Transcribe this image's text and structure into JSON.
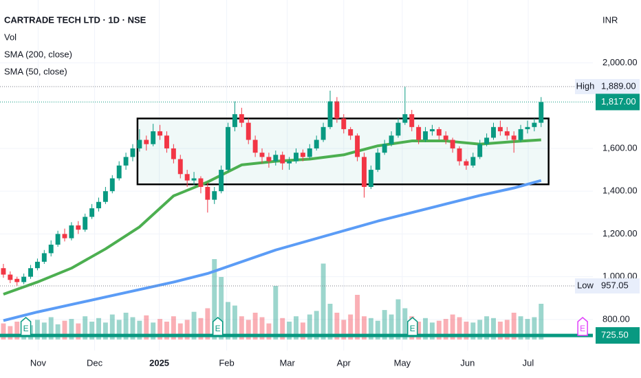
{
  "chart_data": {
    "type": "candlestick",
    "title": "CARTRADE TECH LTD · 1D · NSE",
    "volume_name": "Vol",
    "currency": "INR",
    "up_color": "#089981",
    "down_color": "#f23645",
    "grid": true,
    "xlim": [
      -0.5,
      86.6
    ],
    "ylim": [
      655,
      2294
    ],
    "yticks": [
      {
        "value": 2000,
        "label": "2,000.00"
      },
      {
        "value": 1600,
        "label": "1,600.00"
      },
      {
        "value": 1400,
        "label": "1,400.00"
      },
      {
        "value": 1200,
        "label": "1,200.00"
      },
      {
        "value": 1000,
        "label": "1,000.00"
      },
      {
        "value": 800,
        "label": "800.00"
      }
    ],
    "xticks": [
      {
        "value": 5.1,
        "label": "Nov"
      },
      {
        "value": 13.4,
        "label": "Dec"
      },
      {
        "value": 22.9,
        "label": "2025"
      },
      {
        "value": 32.8,
        "label": "Feb"
      },
      {
        "value": 41.7,
        "label": "Mar"
      },
      {
        "value": 50,
        "label": "Apr"
      },
      {
        "value": 58.6,
        "label": "May"
      },
      {
        "value": 68.2,
        "label": "Jun"
      },
      {
        "value": 77.1,
        "label": "Jul"
      }
    ],
    "ohlc": [
      [
        1040,
        1060,
        995,
        1010
      ],
      [
        1010,
        1025,
        970,
        985
      ],
      [
        990,
        1000,
        957.05,
        975
      ],
      [
        975,
        1015,
        965,
        1000
      ],
      [
        1000,
        1055,
        990,
        1040
      ],
      [
        1040,
        1085,
        1030,
        1070
      ],
      [
        1070,
        1125,
        1060,
        1110
      ],
      [
        1110,
        1170,
        1095,
        1150
      ],
      [
        1150,
        1215,
        1140,
        1200
      ],
      [
        1200,
        1225,
        1165,
        1180
      ],
      [
        1180,
        1255,
        1170,
        1240
      ],
      [
        1240,
        1260,
        1200,
        1220
      ],
      [
        1220,
        1295,
        1210,
        1280
      ],
      [
        1280,
        1340,
        1270,
        1320
      ],
      [
        1320,
        1370,
        1305,
        1350
      ],
      [
        1350,
        1420,
        1340,
        1400
      ],
      [
        1400,
        1475,
        1390,
        1460
      ],
      [
        1460,
        1540,
        1450,
        1520
      ],
      [
        1520,
        1580,
        1500,
        1560
      ],
      [
        1560,
        1620,
        1540,
        1600
      ],
      [
        1600,
        1690,
        1585,
        1640
      ],
      [
        1640,
        1660,
        1590,
        1620
      ],
      [
        1620,
        1715,
        1610,
        1680
      ],
      [
        1680,
        1710,
        1640,
        1660
      ],
      [
        1660,
        1680,
        1580,
        1600
      ],
      [
        1600,
        1620,
        1530,
        1550
      ],
      [
        1550,
        1570,
        1460,
        1480
      ],
      [
        1480,
        1500,
        1420,
        1450
      ],
      [
        1450,
        1490,
        1430,
        1460
      ],
      [
        1460,
        1470,
        1390,
        1420
      ],
      [
        1420,
        1440,
        1300,
        1360
      ],
      [
        1360,
        1420,
        1340,
        1400
      ],
      [
        1400,
        1520,
        1390,
        1500
      ],
      [
        1500,
        1720,
        1490,
        1700
      ],
      [
        1700,
        1820,
        1680,
        1760
      ],
      [
        1760,
        1790,
        1700,
        1720
      ],
      [
        1720,
        1740,
        1620,
        1640
      ],
      [
        1640,
        1660,
        1560,
        1580
      ],
      [
        1580,
        1600,
        1530,
        1560
      ],
      [
        1560,
        1580,
        1510,
        1540
      ],
      [
        1540,
        1590,
        1520,
        1570
      ],
      [
        1570,
        1585,
        1500,
        1530
      ],
      [
        1530,
        1560,
        1500,
        1540
      ],
      [
        1540,
        1600,
        1530,
        1580
      ],
      [
        1580,
        1595,
        1540,
        1560
      ],
      [
        1560,
        1620,
        1550,
        1600
      ],
      [
        1600,
        1660,
        1590,
        1640
      ],
      [
        1640,
        1720,
        1630,
        1700
      ],
      [
        1700,
        1870,
        1690,
        1820
      ],
      [
        1820,
        1840,
        1720,
        1740
      ],
      [
        1740,
        1760,
        1670,
        1690
      ],
      [
        1690,
        1700,
        1640,
        1660
      ],
      [
        1660,
        1670,
        1540,
        1560
      ],
      [
        1560,
        1580,
        1370,
        1420
      ],
      [
        1420,
        1520,
        1410,
        1500
      ],
      [
        1500,
        1600,
        1490,
        1580
      ],
      [
        1580,
        1640,
        1570,
        1620
      ],
      [
        1620,
        1680,
        1610,
        1660
      ],
      [
        1660,
        1740,
        1650,
        1720
      ],
      [
        1720,
        1889,
        1710,
        1760
      ],
      [
        1760,
        1780,
        1680,
        1700
      ],
      [
        1700,
        1710,
        1620,
        1640
      ],
      [
        1640,
        1700,
        1630,
        1680
      ],
      [
        1680,
        1710,
        1660,
        1690
      ],
      [
        1690,
        1700,
        1640,
        1660
      ],
      [
        1660,
        1680,
        1620,
        1640
      ],
      [
        1640,
        1650,
        1580,
        1600
      ],
      [
        1600,
        1610,
        1520,
        1540
      ],
      [
        1540,
        1550,
        1500,
        1520
      ],
      [
        1520,
        1580,
        1510,
        1560
      ],
      [
        1560,
        1640,
        1550,
        1620
      ],
      [
        1620,
        1670,
        1610,
        1650
      ],
      [
        1650,
        1720,
        1640,
        1700
      ],
      [
        1700,
        1730,
        1660,
        1680
      ],
      [
        1680,
        1700,
        1640,
        1660
      ],
      [
        1660,
        1680,
        1580,
        1640
      ],
      [
        1640,
        1710,
        1630,
        1690
      ],
      [
        1690,
        1730,
        1670,
        1700
      ],
      [
        1700,
        1740,
        1680,
        1720
      ],
      [
        1720,
        1840,
        1700,
        1817
      ]
    ],
    "volume": [
      180,
      150,
      200,
      140,
      160,
      220,
      190,
      250,
      170,
      210,
      230,
      180,
      260,
      200,
      240,
      190,
      280,
      220,
      300,
      250,
      210,
      270,
      190,
      230,
      200,
      260,
      180,
      220,
      310,
      240,
      350,
      900,
      700,
      420,
      380,
      260,
      220,
      300,
      250,
      180,
      600,
      240,
      200,
      260,
      190,
      280,
      320,
      850,
      400,
      300,
      220,
      280,
      500,
      260,
      240,
      210,
      330,
      280,
      450,
      350,
      260,
      200,
      240,
      190,
      210,
      230,
      280,
      250,
      200,
      190,
      220,
      260,
      240,
      200,
      220,
      300,
      260,
      230,
      250,
      400
    ],
    "volume_ylim": [
      0,
      1000
    ],
    "series": [
      {
        "name": "SMA (200, close)",
        "color": "#5b9cf6",
        "x": [
          0,
          5,
          10,
          15,
          20,
          25,
          30,
          35,
          40,
          45,
          50,
          55,
          60,
          65,
          70,
          75,
          79
        ],
        "values": [
          795,
          835,
          870,
          905,
          940,
          975,
          1015,
          1070,
          1125,
          1170,
          1215,
          1260,
          1300,
          1340,
          1380,
          1415,
          1450
        ]
      },
      {
        "name": "SMA (50, close)",
        "color": "#4caf50",
        "x": [
          0,
          5,
          10,
          15,
          20,
          25,
          30,
          35,
          40,
          45,
          50,
          55,
          60,
          65,
          70,
          75,
          79
        ],
        "values": [
          918,
          975,
          1040,
          1130,
          1233,
          1378,
          1443,
          1523,
          1540,
          1550,
          1570,
          1612,
          1635,
          1635,
          1620,
          1632,
          1640
        ]
      }
    ],
    "high": {
      "name": "High",
      "value": 1889,
      "label": "1,889.00"
    },
    "low": {
      "name": "Low",
      "value": 957.05,
      "label": "957.05"
    },
    "last_price": {
      "value": 1817,
      "label": "1,817.00"
    },
    "price_line": {
      "value": 725.5,
      "label": "725.50"
    },
    "range_box": {
      "x": [
        19.7,
        80.1
      ],
      "y": [
        1432,
        1740
      ]
    },
    "events": [
      {
        "label": "E",
        "x": 3.3,
        "color": "#089981"
      },
      {
        "label": "E",
        "x": 31.5,
        "color": "#089981"
      },
      {
        "label": "E",
        "x": 60.1,
        "color": "#089981"
      },
      {
        "label": "E",
        "x": 85.1,
        "color": "#e040fb"
      }
    ]
  }
}
